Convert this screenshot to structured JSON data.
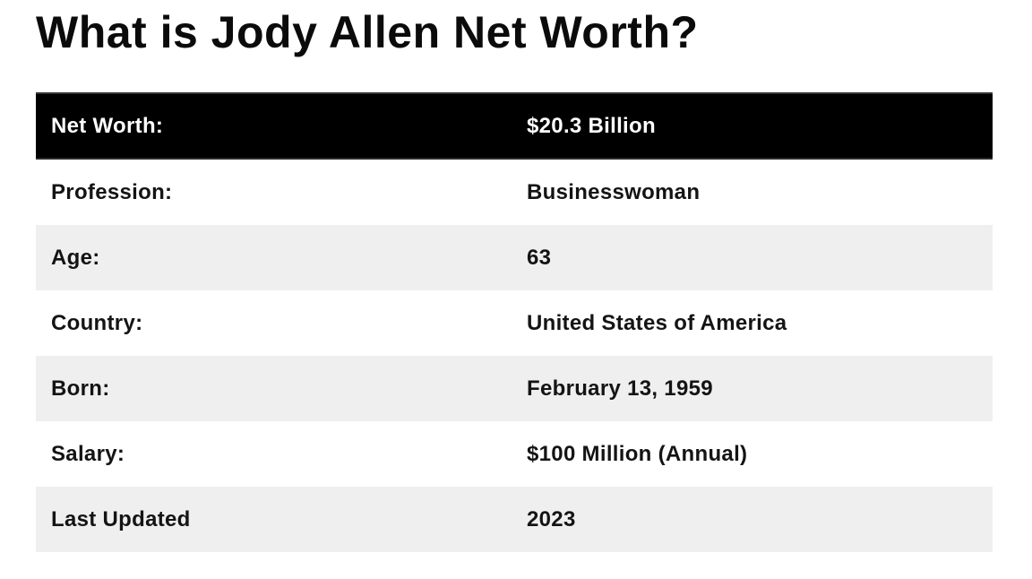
{
  "page": {
    "title": "What is Jody Allen Net Worth?"
  },
  "table": {
    "rows": [
      {
        "label": "Net Worth:",
        "value": "$20.3 Billion",
        "highlight": true
      },
      {
        "label": "Profession:",
        "value": "Businesswoman"
      },
      {
        "label": "Age:",
        "value": "63"
      },
      {
        "label": "Country:",
        "value": "United States of America"
      },
      {
        "label": "Born:",
        "value": "February 13, 1959"
      },
      {
        "label": "Salary:",
        "value": "$100 Million (Annual)"
      },
      {
        "label": "Last Updated",
        "value": "2023"
      }
    ],
    "colors": {
      "highlight_bg": "#000000",
      "highlight_text": "#ffffff",
      "stripe_bg": "#efefef",
      "plain_bg": "#ffffff",
      "text": "#141414"
    }
  }
}
